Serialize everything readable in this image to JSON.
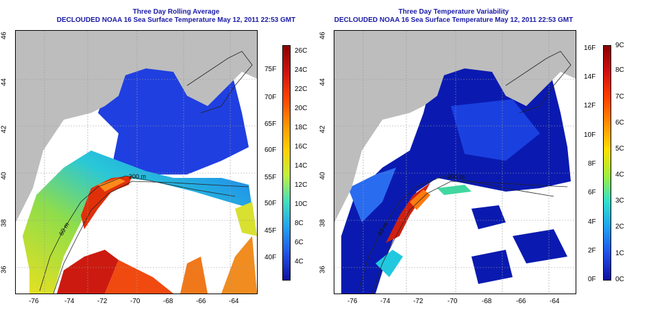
{
  "left_panel": {
    "title_line1": "Three Day Rolling Average",
    "title_line2": "DECLOUDED NOAA 16 Sea Surface Temperature May 12, 2011 22:53 GMT",
    "lon_ticks": [
      "-76",
      "-74",
      "-72",
      "-70",
      "-68",
      "-66",
      "-64"
    ],
    "lat_ticks": [
      "46",
      "44",
      "42",
      "40",
      "38",
      "36"
    ],
    "colorbar_celsius": [
      "26C",
      "24C",
      "22C",
      "20C",
      "18C",
      "16C",
      "14C",
      "12C",
      "10C",
      "8C",
      "6C",
      "4C"
    ],
    "colorbar_fahrenheit": [
      "75F",
      "70F",
      "65F",
      "60F",
      "55F",
      "50F",
      "45F",
      "40F"
    ],
    "contour_labels": [
      "60 m",
      "200 m"
    ]
  },
  "right_panel": {
    "title_line1": "Three Day Temperature Variability",
    "title_line2": "DECLOUDED NOAA 16 Sea Surface Temperature May 12, 2011 22:53 GMT",
    "lon_ticks": [
      "-76",
      "-74",
      "-72",
      "-70",
      "-68",
      "-66",
      "-64"
    ],
    "lat_ticks": [
      "46",
      "44",
      "42",
      "40",
      "38",
      "36"
    ],
    "colorbar_celsius": [
      "9C",
      "8C",
      "7C",
      "6C",
      "5C",
      "4C",
      "3C",
      "2C",
      "1C",
      "0C"
    ],
    "colorbar_fahrenheit": [
      "16F",
      "14F",
      "12F",
      "10F",
      "8F",
      "6F",
      "4F",
      "2F",
      "0F"
    ],
    "contour_labels": [
      "60 m",
      "200 m"
    ]
  },
  "colors": {
    "land": "#bdbdbd",
    "title": "#1a1aa6",
    "no_data": "#ffffff"
  }
}
